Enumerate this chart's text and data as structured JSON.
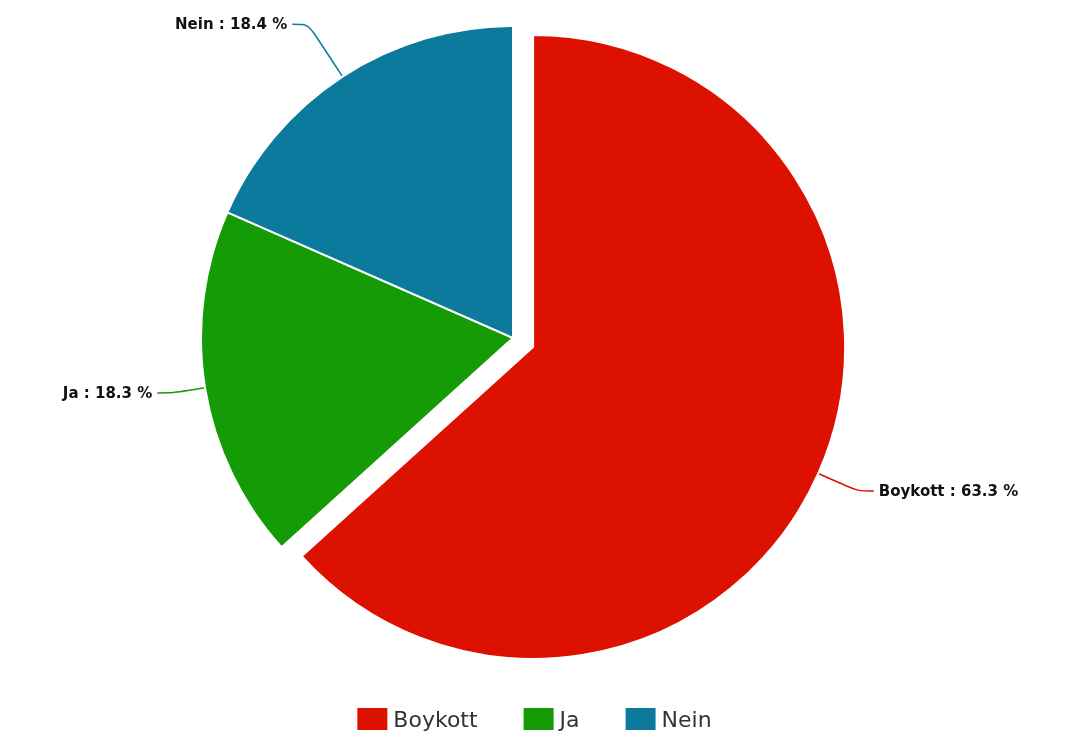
{
  "chart_data": {
    "type": "pie",
    "categories": [
      "Boykott",
      "Ja",
      "Nein"
    ],
    "values": [
      63.3,
      18.3,
      18.4
    ],
    "colors": [
      "#dd1100",
      "#149b05",
      "#0b7a9c"
    ],
    "value_labels": [
      "Boykott : 63.3 %",
      "Ja : 18.3 %",
      "Nein : 18.4 %"
    ],
    "legend": "bottom"
  }
}
